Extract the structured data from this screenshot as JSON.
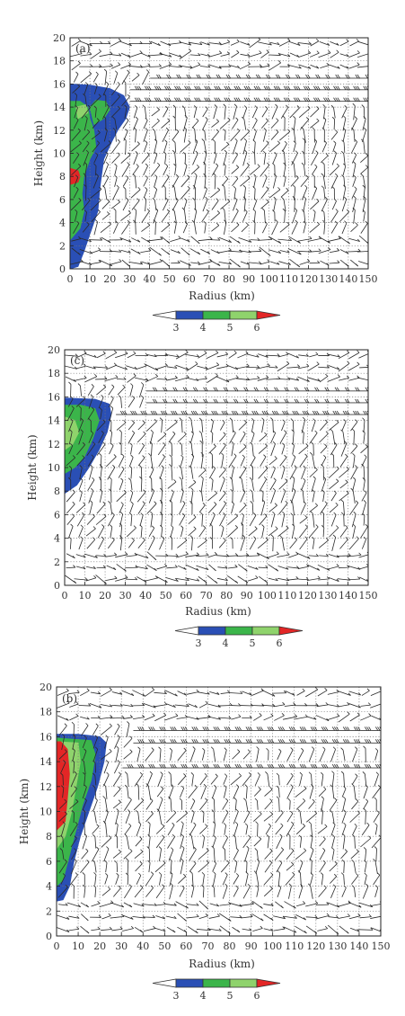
{
  "colors": {
    "blue": "#2a4fb5",
    "green": "#3bb54a",
    "lightgreen": "#8fd36c",
    "red": "#e32626",
    "barb": "#2a2a2a",
    "axis": "#222222",
    "grid": "#777777"
  },
  "colorbar_ticks": [
    "3",
    "4",
    "5",
    "6"
  ],
  "chart_data": [
    {
      "type": "heatmap",
      "panel_label": "(a)",
      "xlabel": "Radius (km)",
      "ylabel": "Height (km)",
      "xlim": [
        0,
        150
      ],
      "ylim": [
        0,
        20
      ],
      "xticks": [
        0,
        10,
        20,
        30,
        40,
        50,
        60,
        70,
        80,
        90,
        100,
        110,
        120,
        130,
        140,
        150
      ],
      "yticks": [
        0,
        2,
        4,
        6,
        8,
        10,
        12,
        14,
        16,
        18,
        20
      ],
      "grid": true,
      "legend": "colorbar-bottom",
      "shaded_regions": [
        {
          "level": "3",
          "color": "blue",
          "outline": [
            [
              0,
              0
            ],
            [
              4,
              0.2
            ],
            [
              7,
              1.5
            ],
            [
              10,
              3
            ],
            [
              14,
              5
            ],
            [
              15,
              7
            ],
            [
              17,
              9.5
            ],
            [
              21,
              11
            ],
            [
              24,
              12
            ],
            [
              28,
              13
            ],
            [
              30,
              14
            ],
            [
              27,
              15
            ],
            [
              20,
              15.6
            ],
            [
              10,
              15.9
            ],
            [
              0,
              16
            ]
          ]
        },
        {
          "level": "4",
          "color": "green",
          "outline": [
            [
              0,
              2.5
            ],
            [
              5,
              3.5
            ],
            [
              7,
              5
            ],
            [
              6,
              6.5
            ],
            [
              7,
              8
            ],
            [
              10,
              9.5
            ],
            [
              13,
              10.5
            ],
            [
              12,
              12
            ],
            [
              10,
              13
            ],
            [
              9,
              14
            ],
            [
              5,
              14.5
            ],
            [
              0,
              14.5
            ]
          ]
        },
        {
          "level": "4",
          "color": "green",
          "outline": [
            [
              12,
              12.5
            ],
            [
              17,
              13
            ],
            [
              20,
              13.8
            ],
            [
              18,
              14.5
            ],
            [
              13,
              14.6
            ],
            [
              10,
              14
            ]
          ]
        },
        {
          "level": "5",
          "color": "lightgreen",
          "outline": [
            [
              4,
              13
            ],
            [
              9,
              13.5
            ],
            [
              8,
              14.2
            ],
            [
              3,
              14
            ]
          ]
        },
        {
          "level": "6",
          "color": "red",
          "outline": [
            [
              0,
              7.3
            ],
            [
              4,
              7.5
            ],
            [
              5,
              8
            ],
            [
              4,
              8.5
            ],
            [
              0,
              8.7
            ]
          ]
        }
      ],
      "jets": [
        {
          "y": 15.0,
          "x0": 30,
          "x1": 150,
          "strength": 3
        },
        {
          "y": 16.0,
          "x0": 40,
          "x1": 150,
          "strength": 2
        }
      ]
    },
    {
      "type": "heatmap",
      "panel_label": "(c)",
      "xlabel": "Radius (km)",
      "ylabel": "Height (km)",
      "xlim": [
        0,
        150
      ],
      "ylim": [
        0,
        20
      ],
      "xticks": [
        0,
        10,
        20,
        30,
        40,
        50,
        60,
        70,
        80,
        90,
        100,
        110,
        120,
        130,
        140,
        150
      ],
      "yticks": [
        0,
        2,
        4,
        6,
        8,
        10,
        12,
        14,
        16,
        18,
        20
      ],
      "grid": true,
      "legend": "colorbar-bottom",
      "shaded_regions": [
        {
          "level": "3",
          "color": "blue",
          "outline": [
            [
              0,
              7.8
            ],
            [
              6,
              8.5
            ],
            [
              12,
              10
            ],
            [
              17,
              11.5
            ],
            [
              21,
              13
            ],
            [
              23,
              14.5
            ],
            [
              22,
              15.4
            ],
            [
              15,
              15.8
            ],
            [
              0,
              15.9
            ]
          ]
        },
        {
          "level": "4",
          "color": "green",
          "outline": [
            [
              0,
              9.5
            ],
            [
              5,
              10
            ],
            [
              10,
              11
            ],
            [
              14,
              12.5
            ],
            [
              17,
              14
            ],
            [
              15,
              15
            ],
            [
              8,
              15.3
            ],
            [
              0,
              15.3
            ]
          ]
        },
        {
          "level": "5",
          "color": "lightgreen",
          "outline": [
            [
              0,
              11.5
            ],
            [
              4,
              12
            ],
            [
              7,
              13
            ],
            [
              5,
              14
            ],
            [
              0,
              14.3
            ]
          ]
        }
      ],
      "jets": [
        {
          "y": 14.5,
          "x0": 25,
          "x1": 150,
          "strength": 3
        },
        {
          "y": 16.0,
          "x0": 40,
          "x1": 150,
          "strength": 2
        }
      ]
    },
    {
      "type": "heatmap",
      "panel_label": "(b)",
      "xlabel": "Radius (km)",
      "ylabel": "Height (km)",
      "xlim": [
        0,
        150
      ],
      "ylim": [
        0,
        20
      ],
      "xticks": [
        0,
        10,
        20,
        30,
        40,
        50,
        60,
        70,
        80,
        90,
        100,
        110,
        120,
        130,
        140,
        150
      ],
      "yticks": [
        0,
        2,
        4,
        6,
        8,
        10,
        12,
        14,
        16,
        18,
        20
      ],
      "grid": true,
      "legend": "colorbar-bottom",
      "shaded_regions": [
        {
          "level": "3",
          "color": "blue",
          "outline": [
            [
              0,
              2.8
            ],
            [
              3,
              2.9
            ],
            [
              6,
              4
            ],
            [
              8,
              6
            ],
            [
              11,
              8
            ],
            [
              15,
              10
            ],
            [
              19,
              12
            ],
            [
              22,
              14
            ],
            [
              23,
              15.5
            ],
            [
              20,
              16
            ],
            [
              10,
              16.2
            ],
            [
              0,
              16.2
            ]
          ]
        },
        {
          "level": "4",
          "color": "green",
          "outline": [
            [
              0,
              4
            ],
            [
              3,
              4.5
            ],
            [
              6,
              6.5
            ],
            [
              9,
              8.5
            ],
            [
              12,
              10.5
            ],
            [
              16,
              12.5
            ],
            [
              18,
              14.5
            ],
            [
              16,
              15.7
            ],
            [
              0,
              15.9
            ]
          ]
        },
        {
          "level": "5",
          "color": "lightgreen",
          "outline": [
            [
              0,
              7
            ],
            [
              4,
              8
            ],
            [
              7,
              10
            ],
            [
              9,
              12
            ],
            [
              11,
              14
            ],
            [
              10,
              15.5
            ],
            [
              0,
              15.6
            ]
          ]
        },
        {
          "level": "6",
          "color": "red",
          "outline": [
            [
              0,
              8.5
            ],
            [
              4,
              9.2
            ],
            [
              5,
              11
            ],
            [
              6,
              13
            ],
            [
              5,
              15
            ],
            [
              2,
              15.6
            ],
            [
              0,
              15.6
            ]
          ]
        }
      ],
      "jets": [
        {
          "y": 13.8,
          "x0": 30,
          "x1": 150,
          "strength": 3
        },
        {
          "y": 16.0,
          "x0": 35,
          "x1": 150,
          "strength": 3
        }
      ]
    }
  ]
}
